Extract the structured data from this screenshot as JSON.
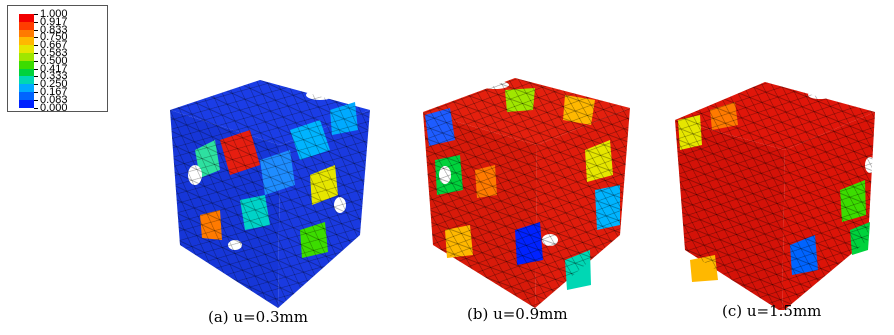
{
  "legend": {
    "labels": [
      "1.000",
      "0.917",
      "0.833",
      "0.750",
      "0.667",
      "0.583",
      "0.500",
      "0.417",
      "0.333",
      "0.250",
      "0.167",
      "0.083",
      "0.000"
    ],
    "colors": [
      "#f20000",
      "#ff3d00",
      "#ff7a00",
      "#ffb800",
      "#e6e600",
      "#a0e600",
      "#3cdc00",
      "#00d23c",
      "#00d7b4",
      "#00aaff",
      "#0064ff",
      "#0022ff"
    ]
  },
  "panels": [
    {
      "caption": "(a) u=0.3mm",
      "dominant": "#1a3cf0"
    },
    {
      "caption": "(b) u=0.9mm",
      "dominant": "#e21a0a"
    },
    {
      "caption": "(c) u=1.5mm",
      "dominant": "#e01408"
    }
  ]
}
